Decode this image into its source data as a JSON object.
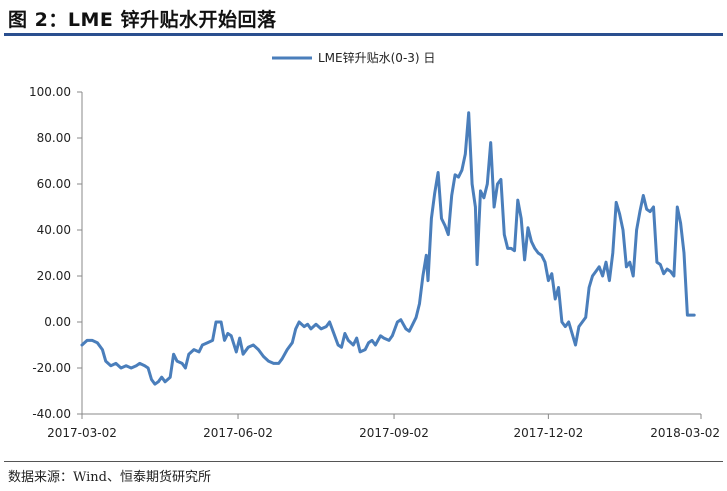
{
  "header": {
    "title": "图 2：LME 锌升贴水开始回落"
  },
  "footer": {
    "source": "数据来源：Wind、恒泰期货研究所"
  },
  "colors": {
    "series": "#4a7ebb",
    "title_rule": "#2a4f8f",
    "axis": "#888888"
  },
  "chart_data": {
    "type": "line",
    "title": "",
    "xlabel": "",
    "ylabel": "",
    "ylim": [
      -40,
      100
    ],
    "yticks": [
      "100.00",
      "80.00",
      "60.00",
      "40.00",
      "20.00",
      "0.00",
      "-20.00",
      "-40.00"
    ],
    "xticks": [
      "2017-03-02",
      "2017-06-02",
      "2017-09-02",
      "2017-12-02",
      "2018-03-02"
    ],
    "xlim": [
      "2017-03-02",
      "2018-03-02"
    ],
    "grid": false,
    "legend": "top-center",
    "series": [
      {
        "name": "LME锌升贴水(0-3) 日",
        "points": [
          [
            "2017-03-02",
            -10
          ],
          [
            "2017-03-05",
            -8
          ],
          [
            "2017-03-08",
            -8
          ],
          [
            "2017-03-11",
            -9
          ],
          [
            "2017-03-14",
            -12
          ],
          [
            "2017-03-16",
            -17
          ],
          [
            "2017-03-19",
            -19
          ],
          [
            "2017-03-22",
            -18
          ],
          [
            "2017-03-25",
            -20
          ],
          [
            "2017-03-28",
            -19
          ],
          [
            "2017-03-31",
            -20
          ],
          [
            "2017-04-03",
            -19
          ],
          [
            "2017-04-05",
            -18
          ],
          [
            "2017-04-08",
            -19
          ],
          [
            "2017-04-10",
            -20
          ],
          [
            "2017-04-12",
            -25
          ],
          [
            "2017-04-14",
            -27
          ],
          [
            "2017-04-16",
            -26
          ],
          [
            "2017-04-18",
            -24
          ],
          [
            "2017-04-20",
            -26
          ],
          [
            "2017-04-23",
            -24
          ],
          [
            "2017-04-25",
            -14
          ],
          [
            "2017-04-27",
            -17
          ],
          [
            "2017-04-30",
            -18
          ],
          [
            "2017-05-02",
            -20
          ],
          [
            "2017-05-04",
            -14
          ],
          [
            "2017-05-07",
            -12
          ],
          [
            "2017-05-10",
            -13
          ],
          [
            "2017-05-12",
            -10
          ],
          [
            "2017-05-15",
            -9
          ],
          [
            "2017-05-18",
            -8
          ],
          [
            "2017-05-20",
            0
          ],
          [
            "2017-05-23",
            0
          ],
          [
            "2017-05-25",
            -8
          ],
          [
            "2017-05-27",
            -5
          ],
          [
            "2017-05-29",
            -6
          ],
          [
            "2017-06-01",
            -13
          ],
          [
            "2017-06-03",
            -7
          ],
          [
            "2017-06-05",
            -14
          ],
          [
            "2017-06-08",
            -11
          ],
          [
            "2017-06-11",
            -10
          ],
          [
            "2017-06-14",
            -12
          ],
          [
            "2017-06-17",
            -15
          ],
          [
            "2017-06-20",
            -17
          ],
          [
            "2017-06-23",
            -18
          ],
          [
            "2017-06-26",
            -18
          ],
          [
            "2017-06-28",
            -16
          ],
          [
            "2017-07-01",
            -12
          ],
          [
            "2017-07-04",
            -9
          ],
          [
            "2017-07-06",
            -3
          ],
          [
            "2017-07-08",
            0
          ],
          [
            "2017-07-11",
            -2
          ],
          [
            "2017-07-13",
            -1
          ],
          [
            "2017-07-15",
            -3
          ],
          [
            "2017-07-18",
            -1
          ],
          [
            "2017-07-21",
            -3
          ],
          [
            "2017-07-24",
            -2
          ],
          [
            "2017-07-26",
            0
          ],
          [
            "2017-07-28",
            -4
          ],
          [
            "2017-07-31",
            -10
          ],
          [
            "2017-08-02",
            -11
          ],
          [
            "2017-08-04",
            -5
          ],
          [
            "2017-08-06",
            -8
          ],
          [
            "2017-08-09",
            -10
          ],
          [
            "2017-08-11",
            -7
          ],
          [
            "2017-08-13",
            -13
          ],
          [
            "2017-08-16",
            -12
          ],
          [
            "2017-08-18",
            -9
          ],
          [
            "2017-08-20",
            -8
          ],
          [
            "2017-08-22",
            -10
          ],
          [
            "2017-08-25",
            -6
          ],
          [
            "2017-08-27",
            -7
          ],
          [
            "2017-08-30",
            -8
          ],
          [
            "2017-09-01",
            -6
          ],
          [
            "2017-09-04",
            0
          ],
          [
            "2017-09-06",
            1
          ],
          [
            "2017-09-09",
            -3
          ],
          [
            "2017-09-11",
            -4
          ],
          [
            "2017-09-13",
            -1
          ],
          [
            "2017-09-15",
            2
          ],
          [
            "2017-09-17",
            8
          ],
          [
            "2017-09-19",
            20
          ],
          [
            "2017-09-21",
            29
          ],
          [
            "2017-09-22",
            18
          ],
          [
            "2017-09-24",
            45
          ],
          [
            "2017-09-26",
            56
          ],
          [
            "2017-09-28",
            65
          ],
          [
            "2017-09-30",
            45
          ],
          [
            "2017-10-02",
            42
          ],
          [
            "2017-10-04",
            38
          ],
          [
            "2017-10-06",
            55
          ],
          [
            "2017-10-08",
            64
          ],
          [
            "2017-10-10",
            63
          ],
          [
            "2017-10-12",
            66
          ],
          [
            "2017-10-14",
            73
          ],
          [
            "2017-10-16",
            91
          ],
          [
            "2017-10-18",
            60
          ],
          [
            "2017-10-20",
            50
          ],
          [
            "2017-10-21",
            25
          ],
          [
            "2017-10-23",
            57
          ],
          [
            "2017-10-25",
            54
          ],
          [
            "2017-10-27",
            60
          ],
          [
            "2017-10-29",
            78
          ],
          [
            "2017-10-31",
            50
          ],
          [
            "2017-11-02",
            60
          ],
          [
            "2017-11-04",
            62
          ],
          [
            "2017-11-06",
            38
          ],
          [
            "2017-11-08",
            32
          ],
          [
            "2017-11-10",
            32
          ],
          [
            "2017-11-12",
            31
          ],
          [
            "2017-11-14",
            53
          ],
          [
            "2017-11-16",
            45
          ],
          [
            "2017-11-18",
            27
          ],
          [
            "2017-11-20",
            41
          ],
          [
            "2017-11-22",
            35
          ],
          [
            "2017-11-24",
            32
          ],
          [
            "2017-11-26",
            30
          ],
          [
            "2017-11-28",
            29
          ],
          [
            "2017-11-30",
            26
          ],
          [
            "2017-12-02",
            18
          ],
          [
            "2017-12-04",
            21
          ],
          [
            "2017-12-06",
            10
          ],
          [
            "2017-12-08",
            15
          ],
          [
            "2017-12-10",
            0
          ],
          [
            "2017-12-12",
            -2
          ],
          [
            "2017-12-14",
            0
          ],
          [
            "2017-12-16",
            -5
          ],
          [
            "2017-12-18",
            -10
          ],
          [
            "2017-12-20",
            -2
          ],
          [
            "2017-12-22",
            0
          ],
          [
            "2017-12-24",
            2
          ],
          [
            "2017-12-26",
            15
          ],
          [
            "2017-12-28",
            20
          ],
          [
            "2017-12-30",
            22
          ],
          [
            "2018-01-01",
            24
          ],
          [
            "2018-01-03",
            20
          ],
          [
            "2018-01-05",
            26
          ],
          [
            "2018-01-07",
            18
          ],
          [
            "2018-01-09",
            30
          ],
          [
            "2018-01-11",
            52
          ],
          [
            "2018-01-13",
            47
          ],
          [
            "2018-01-15",
            40
          ],
          [
            "2018-01-17",
            24
          ],
          [
            "2018-01-19",
            26
          ],
          [
            "2018-01-21",
            20
          ],
          [
            "2018-01-23",
            40
          ],
          [
            "2018-01-25",
            48
          ],
          [
            "2018-01-27",
            55
          ],
          [
            "2018-01-29",
            49
          ],
          [
            "2018-01-31",
            48
          ],
          [
            "2018-02-02",
            50
          ],
          [
            "2018-02-04",
            26
          ],
          [
            "2018-02-06",
            25
          ],
          [
            "2018-02-08",
            21
          ],
          [
            "2018-02-10",
            23
          ],
          [
            "2018-02-12",
            22
          ],
          [
            "2018-02-14",
            20
          ],
          [
            "2018-02-16",
            50
          ],
          [
            "2018-02-18",
            43
          ],
          [
            "2018-02-20",
            30
          ],
          [
            "2018-02-22",
            3
          ],
          [
            "2018-02-24",
            3
          ],
          [
            "2018-02-26",
            3
          ]
        ]
      }
    ]
  }
}
